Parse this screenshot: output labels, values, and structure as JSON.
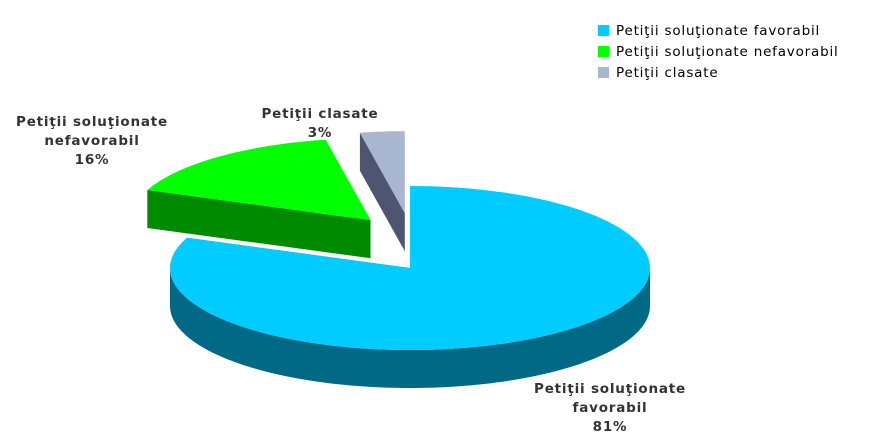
{
  "chart_data": {
    "type": "pie",
    "three_d": true,
    "legend": "top-right",
    "categories": [
      "Petiţii soluţionate favorabil",
      "Petiţii soluţionate nefavorabil",
      "Petiţii clasate"
    ],
    "values": [
      81,
      16,
      3
    ],
    "value_labels": [
      "81%",
      "16%",
      "3%"
    ],
    "colors": [
      "#00ccff",
      "#00ff00",
      "#a9b6d2"
    ],
    "side_colors": [
      "#006a86",
      "#008a00",
      "#4d5570"
    ]
  }
}
